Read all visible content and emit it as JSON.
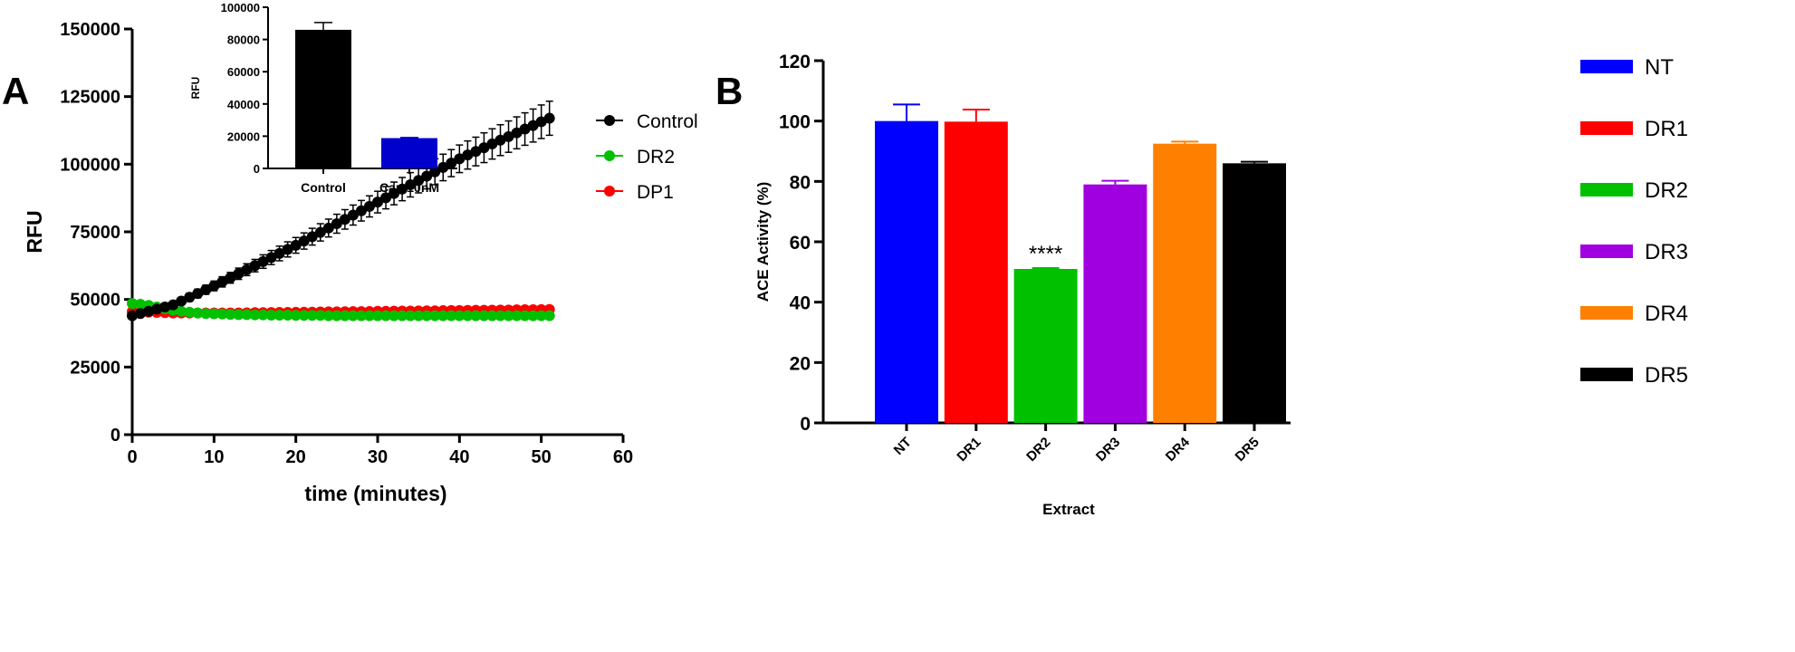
{
  "chart_data": [
    {
      "panel": "A",
      "type": "line",
      "xlabel": "time (minutes)",
      "ylabel": "RFU",
      "xlim": [
        0,
        60
      ],
      "ylim": [
        0,
        150000
      ],
      "xticks": [
        0,
        10,
        20,
        30,
        40,
        50,
        60
      ],
      "yticks": [
        0,
        25000,
        50000,
        75000,
        100000,
        125000,
        150000
      ],
      "legend_position": "right",
      "series": [
        {
          "name": "Control",
          "color": "#000000",
          "y": [
            44000,
            44800,
            45600,
            46400,
            47200,
            48000,
            49400,
            50800,
            52200,
            53600,
            55000,
            56500,
            58000,
            59500,
            61000,
            62500,
            64000,
            65500,
            67000,
            68500,
            70000,
            71600,
            73200,
            74800,
            76400,
            78000,
            79600,
            81200,
            82800,
            84400,
            86000,
            87600,
            89200,
            90800,
            92400,
            94000,
            95600,
            97200,
            98800,
            100400,
            102000,
            103400,
            104700,
            106100,
            107500,
            108900,
            110200,
            111600,
            113000,
            114300,
            115700,
            117000
          ],
          "error": [
            500,
            800,
            900,
            1000,
            1100,
            1200,
            1300,
            1500,
            1600,
            1700,
            1800,
            1900,
            2000,
            2100,
            2200,
            2300,
            2500,
            2600,
            2700,
            2800,
            2900,
            3000,
            3100,
            3200,
            3300,
            3500,
            3600,
            3700,
            3800,
            3900,
            4000,
            4100,
            4200,
            4300,
            4500,
            4600,
            4700,
            4800,
            4900,
            5000,
            5100,
            5200,
            5300,
            5500,
            5600,
            5700,
            5800,
            5900,
            6000,
            6100,
            6200,
            6300
          ]
        },
        {
          "name": "DR2",
          "color": "#00c000",
          "y": [
            48500,
            48200,
            47800,
            47200,
            46600,
            46000,
            45600,
            45300,
            45000,
            44800,
            44700,
            44600,
            44500,
            44400,
            44400,
            44300,
            44300,
            44200,
            44200,
            44200,
            44100,
            44100,
            44100,
            44100,
            44000,
            44000,
            44000,
            44000,
            44000,
            44000,
            44000,
            44000,
            44000,
            44000,
            44000,
            44000,
            44000,
            44000,
            44000,
            44000,
            44000,
            44000,
            44000,
            44000,
            44000,
            44000,
            44000,
            44000,
            44000,
            44000,
            44000,
            44000
          ]
        },
        {
          "name": "DP1",
          "color": "#ff0000",
          "y": [
            45500,
            45400,
            45300,
            45200,
            45100,
            45000,
            45000,
            45000,
            45000,
            45000,
            45000,
            45000,
            45000,
            45000,
            45050,
            45100,
            45100,
            45150,
            45200,
            45200,
            45250,
            45300,
            45300,
            45350,
            45400,
            45400,
            45450,
            45500,
            45500,
            45550,
            45600,
            45600,
            45650,
            45700,
            45700,
            45750,
            45800,
            45800,
            45850,
            45900,
            45900,
            45950,
            46000,
            46000,
            46050,
            46100,
            46100,
            46150,
            46200,
            46200,
            46250,
            46300
          ]
        }
      ],
      "inset": {
        "type": "bar",
        "ylabel": "RFU",
        "ylim": [
          0,
          100000
        ],
        "yticks": [
          0,
          20000,
          40000,
          60000,
          80000,
          100000
        ],
        "categories": [
          "Control",
          "Cap 10nM"
        ],
        "values": [
          86000,
          18800
        ],
        "errors": [
          4500,
          400
        ],
        "colors": [
          "#000000",
          "#0000cc"
        ]
      }
    },
    {
      "panel": "B",
      "type": "bar",
      "xlabel": "Extract",
      "ylabel": "ACE Activity (%)",
      "ylim": [
        0,
        120
      ],
      "yticks": [
        0,
        20,
        40,
        60,
        80,
        100,
        120
      ],
      "categories": [
        "NT",
        "DR1",
        "DR2",
        "DR3",
        "DR4",
        "DR5"
      ],
      "values": [
        100,
        99.8,
        51,
        79,
        92.5,
        86
      ],
      "errors": [
        5.5,
        4,
        0.3,
        1.2,
        0.7,
        0.5
      ],
      "colors": [
        "#0000ff",
        "#ff0000",
        "#00c000",
        "#a000e0",
        "#ff8000",
        "#000000"
      ],
      "annotations": [
        {
          "category": "DR2",
          "text": "****"
        }
      ],
      "legend_position": "right"
    }
  ],
  "panel_labels": [
    "A",
    "B"
  ]
}
